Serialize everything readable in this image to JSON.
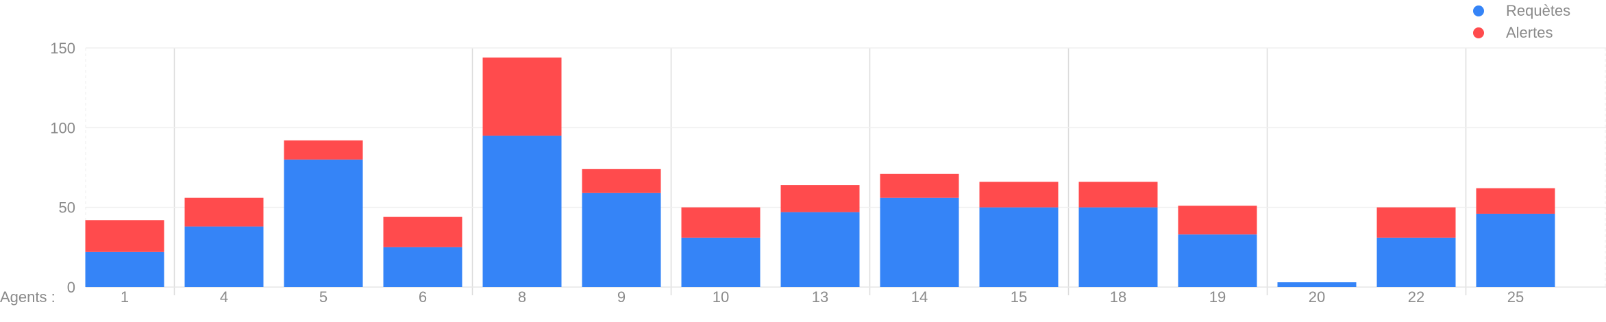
{
  "chart_data": {
    "type": "bar",
    "stacked": true,
    "x_prefix_label": "Agents :",
    "categories": [
      "1",
      "4",
      "5",
      "6",
      "8",
      "9",
      "10",
      "13",
      "14",
      "15",
      "18",
      "19",
      "20",
      "22",
      "25"
    ],
    "series": [
      {
        "name": "Requètes",
        "color": "#3584f7",
        "values": [
          22,
          38,
          80,
          25,
          95,
          59,
          31,
          47,
          56,
          50,
          50,
          33,
          3,
          31,
          46
        ]
      },
      {
        "name": "Alertes",
        "color": "#ff4b4d",
        "values": [
          20,
          18,
          12,
          19,
          49,
          15,
          19,
          17,
          15,
          16,
          16,
          18,
          0,
          19,
          16
        ]
      }
    ],
    "yticks": [
      0,
      50,
      100,
      150
    ],
    "ylim": [
      0,
      150
    ],
    "grid": true,
    "legend_position": "top-right"
  }
}
